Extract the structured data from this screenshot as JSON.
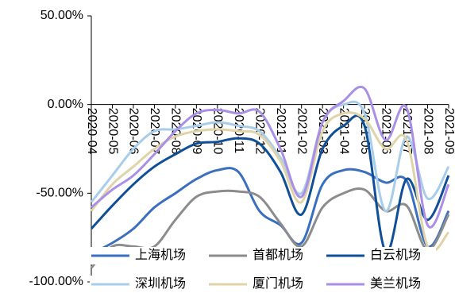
{
  "chart_data": {
    "type": "line",
    "categories": [
      "2020-04",
      "2020-05",
      "2020-06",
      "2020-07",
      "2020-08",
      "2020-09",
      "2020-10",
      "2020-11",
      "2020-12",
      "2021-01",
      "2021-02",
      "2021-03",
      "2021-04",
      "2021-05",
      "2021-06",
      "2021-07",
      "2021-08",
      "2021-09"
    ],
    "ylim": [
      -100,
      50
    ],
    "yticks": [
      {
        "value": -100,
        "label": "-100.00%"
      },
      {
        "value": -50,
        "label": "-50.00%"
      },
      {
        "value": 0,
        "label": "0.00%"
      },
      {
        "value": 50,
        "label": "50.00%"
      }
    ],
    "series": [
      {
        "name": "上海机场",
        "color": "#3a6fc0",
        "values": [
          -84,
          -78,
          -70,
          -58,
          -50,
          -42,
          -37,
          -38,
          -60,
          -68,
          -78,
          -45,
          -37,
          -38,
          -44,
          -43,
          -80,
          -60
        ]
      },
      {
        "name": "首都机场",
        "color": "#8c8c8c",
        "values": [
          -92,
          -80,
          -80,
          -80,
          -65,
          -52,
          -49,
          -49,
          -52,
          -67,
          -80,
          -58,
          -50,
          -48,
          -60,
          -57,
          -82,
          -62
        ]
      },
      {
        "name": "白云机场",
        "color": "#0e4f98",
        "values": [
          -70,
          -57,
          -45,
          -35,
          -28,
          -22,
          -21,
          -19,
          -22,
          -38,
          -62,
          -25,
          -12,
          -12,
          -83,
          -42,
          -65,
          -40
        ]
      },
      {
        "name": "深圳机场",
        "color": "#a8cdea",
        "values": [
          -55,
          -40,
          -25,
          -15,
          -14,
          -12,
          -10,
          -12,
          -15,
          -30,
          -50,
          -10,
          0,
          -5,
          -60,
          -18,
          -53,
          -35
        ]
      },
      {
        "name": "厦门机场",
        "color": "#e1d3a8",
        "values": [
          -60,
          -45,
          -35,
          -25,
          -18,
          -15,
          -14,
          -15,
          -17,
          -32,
          -55,
          -15,
          -5,
          -8,
          -25,
          -20,
          -80,
          -72
        ]
      },
      {
        "name": "美兰机场",
        "color": "#a98fe6",
        "values": [
          -58,
          -48,
          -40,
          -28,
          -15,
          -5,
          -3,
          -5,
          -4,
          -25,
          -52,
          -10,
          2,
          9,
          -20,
          -2,
          -68,
          -45
        ]
      }
    ]
  }
}
